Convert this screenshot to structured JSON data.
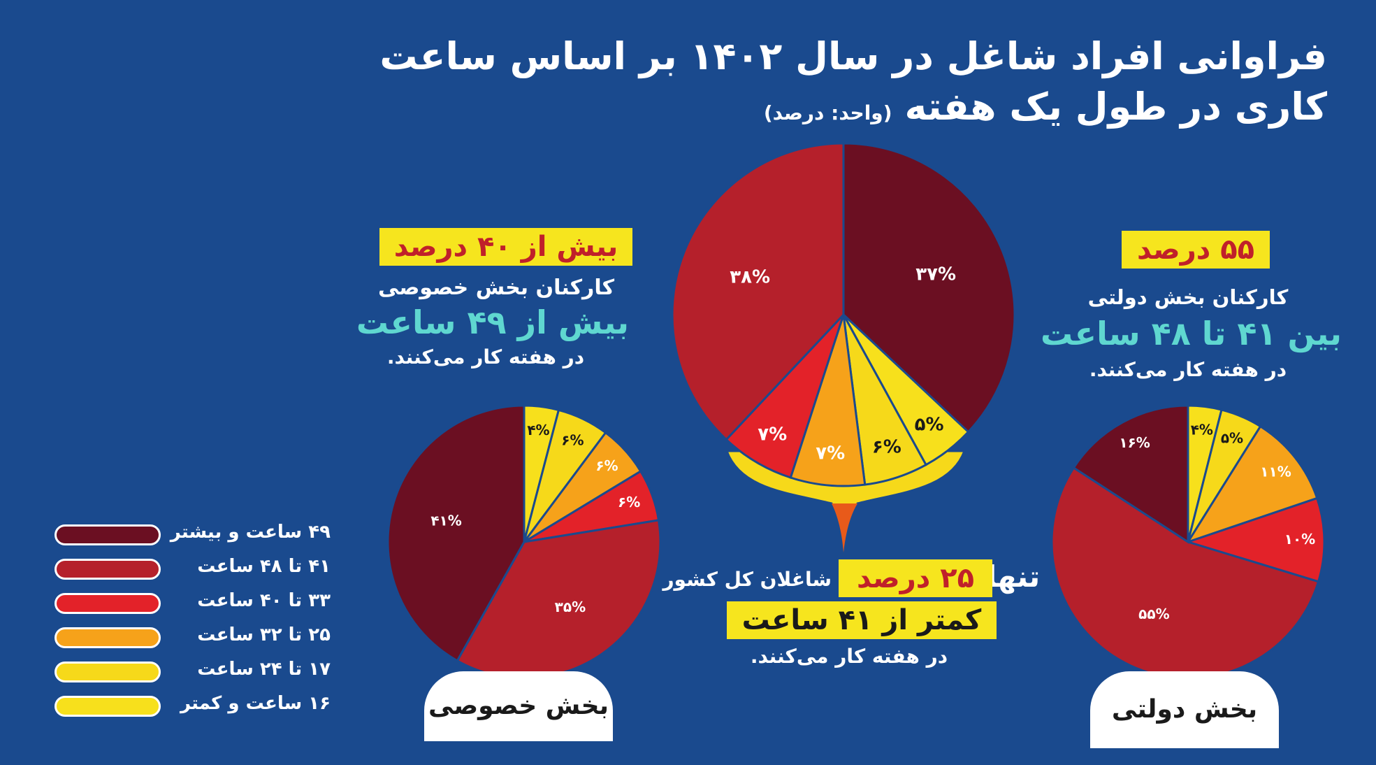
{
  "title": {
    "line1": "فراوانی افراد شاغل در سال ۱۴۰۲ بر اساس ساعت",
    "line2": "کاری در طول یک هفته",
    "unit": "(واحد: درصد)"
  },
  "private_callout": {
    "highlight": "بیش از ۴۰ درصد",
    "line1": "کارکنان بخش خصوصی",
    "line2": "بیش از ۴۹ ساعت",
    "line3": "در هفته کار می‌کنند."
  },
  "public_callout": {
    "highlight": "۵۵ درصد",
    "line1": "کارکنان بخش دولتی",
    "line2": "بین ۴۱ تا ۴۸ ساعت",
    "line3": "در هفته کار می‌کنند."
  },
  "total_callout": {
    "prefix": "تنها",
    "highlight": "۲۵ درصد",
    "line1_rest": "شاغلان کل کشور",
    "line2": "کمتر از ۴۱ ساعت",
    "line3": "در هفته کار می‌کنند."
  },
  "tabs": {
    "private": "بخش خصوصی",
    "public": "بخش دولتی"
  },
  "legend": [
    {
      "label": "۴۹ ساعت و بیشتر",
      "color": "#6b0f22"
    },
    {
      "label": "۴۱ تا ۴۸ ساعت",
      "color": "#b5202b"
    },
    {
      "label": "۳۳ تا ۴۰ ساعت",
      "color": "#e32229"
    },
    {
      "label": "۲۵ تا ۳۲ ساعت",
      "color": "#f6a21a"
    },
    {
      "label": "۱۷ تا ۲۴ ساعت",
      "color": "#f6d91a"
    },
    {
      "label": "۱۶ ساعت و کمتر",
      "color": "#f7e01c"
    }
  ],
  "chart_data": [
    {
      "type": "pie",
      "name": "کل کشور",
      "categories": [
        "۴۹ ساعت و بیشتر",
        "۴۱ تا ۴۸ ساعت",
        "۳۳ تا ۴۰ ساعت",
        "۲۵ تا ۳۲ ساعت",
        "۱۷ تا ۲۴ ساعت",
        "۱۶ ساعت و کمتر"
      ],
      "values": [
        37,
        38,
        7,
        7,
        6,
        5
      ],
      "labels": [
        "۳۷%",
        "۳۸%",
        "۷%",
        "۷%",
        "۶%",
        "۵%"
      ]
    },
    {
      "type": "pie",
      "name": "بخش خصوصی",
      "categories": [
        "۴۹ ساعت و بیشتر",
        "۴۱ تا ۴۸ ساعت",
        "۳۳ تا ۴۰ ساعت",
        "۲۵ تا ۳۲ ساعت",
        "۱۷ تا ۲۴ ساعت",
        "۱۶ ساعت و کمتر"
      ],
      "values": [
        41,
        35,
        6,
        6,
        6,
        4
      ],
      "labels": [
        "۴۱%",
        "۳۵%",
        "۶%",
        "۶%",
        "۶%",
        "۴%"
      ]
    },
    {
      "type": "pie",
      "name": "بخش دولتی",
      "categories": [
        "۴۹ ساعت و بیشتر",
        "۴۱ تا ۴۸ ساعت",
        "۳۳ تا ۴۰ ساعت",
        "۲۵ تا ۳۲ ساعت",
        "۱۷ تا ۲۴ ساعت",
        "۱۶ ساعت و کمتر"
      ],
      "values": [
        16,
        55,
        10,
        11,
        5,
        4
      ],
      "labels": [
        "۱۶%",
        "۵۵%",
        "۱۰%",
        "۱۱%",
        "۵%",
        "۴%"
      ]
    }
  ]
}
